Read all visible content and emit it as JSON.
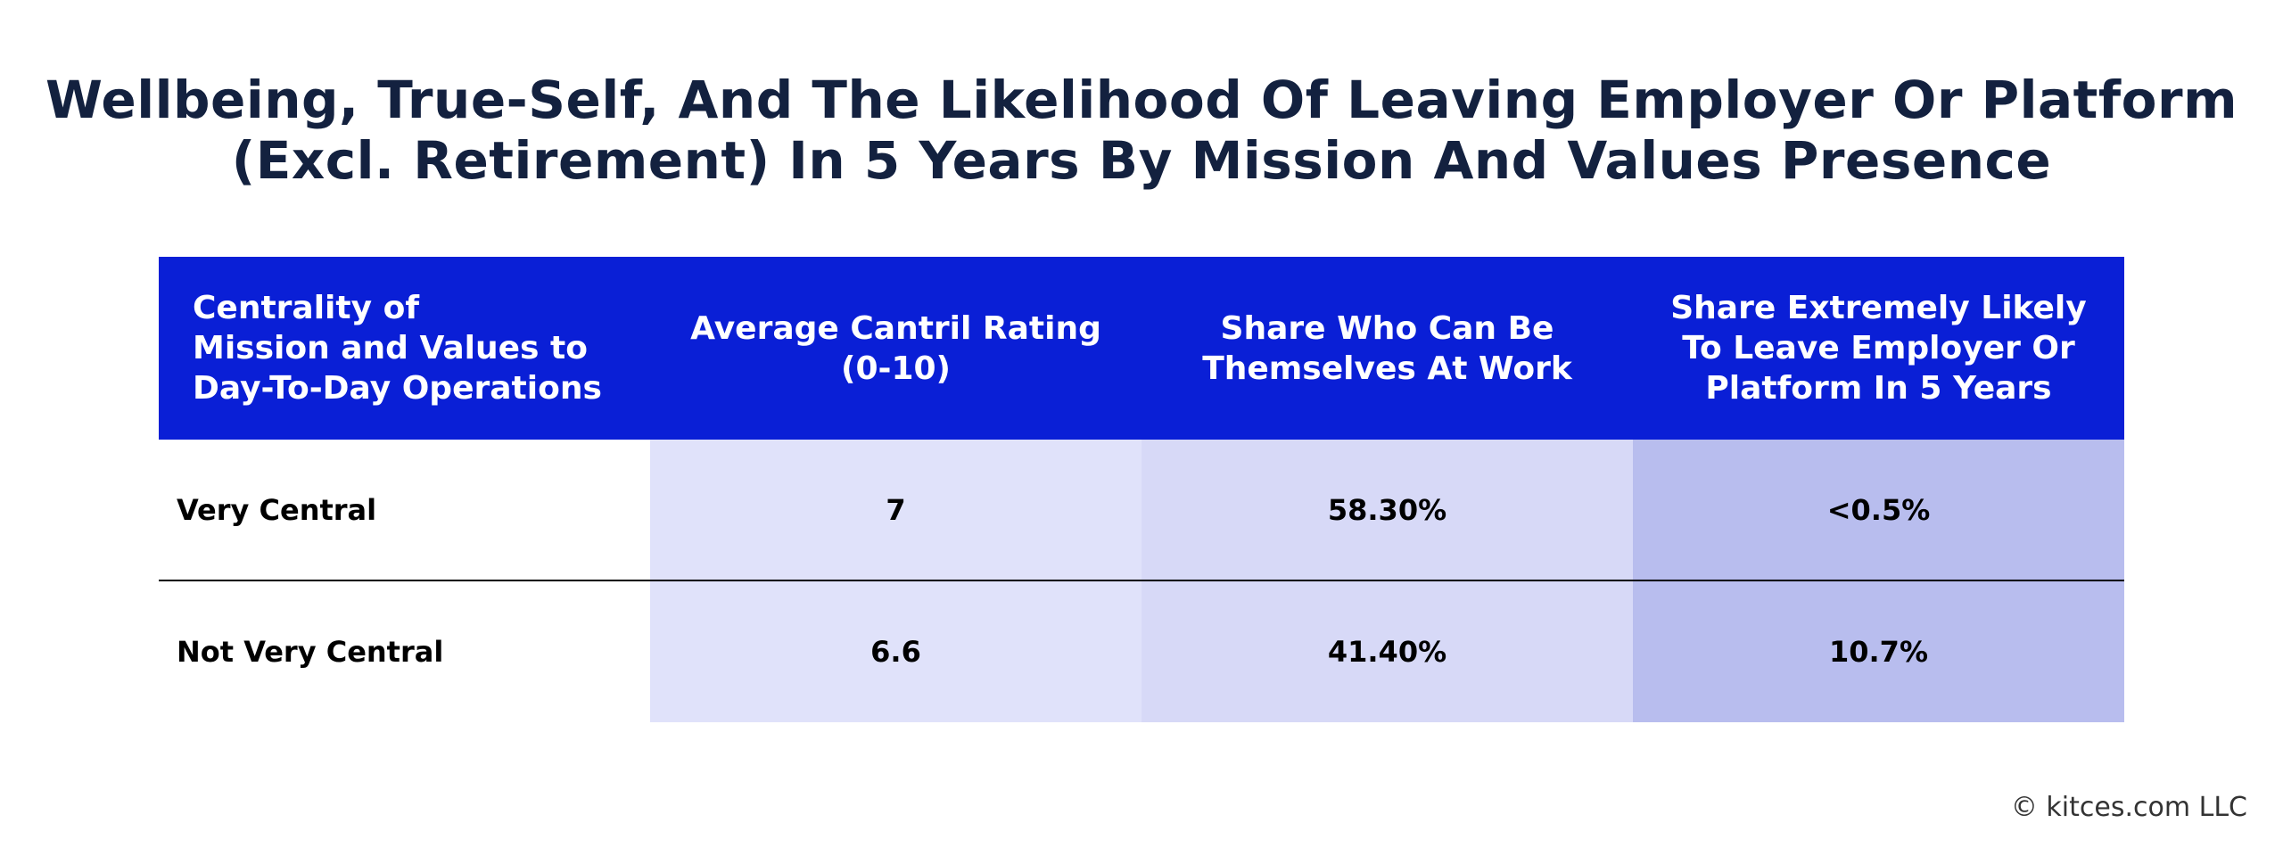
{
  "chart_data": {
    "type": "table",
    "title_lines": [
      "Wellbeing, True-Self, And The Likelihood Of Leaving Employer Or Platform",
      "(Excl. Retirement) In 5 Years By Mission And Values Presence"
    ],
    "columns": [
      {
        "lines": [
          "Centrality of",
          "Mission and Values to",
          "Day-To-Day Operations"
        ]
      },
      {
        "lines": [
          "Average Cantril Rating",
          "(0-10)"
        ]
      },
      {
        "lines": [
          "Share Who Can Be",
          "Themselves At Work"
        ]
      },
      {
        "lines": [
          "Share Extremely Likely",
          "To Leave Employer Or",
          "Platform In 5 Years"
        ]
      }
    ],
    "rows": [
      {
        "label": "Very Central",
        "values": [
          "7",
          "58.30%",
          "<0.5%"
        ]
      },
      {
        "label": "Not Very Central",
        "values": [
          "6.6",
          "41.40%",
          "10.7%"
        ]
      }
    ],
    "colors": {
      "header_background": "#0a1fd6",
      "header_text": "#ffffff",
      "title_text": "#13213f",
      "column_1_fill": "#e0e2fa",
      "column_2_fill": "#d7d9f7",
      "column_3_fill": "#b8bdee"
    }
  },
  "footer": {
    "copyright": "© kitces.com LLC"
  }
}
